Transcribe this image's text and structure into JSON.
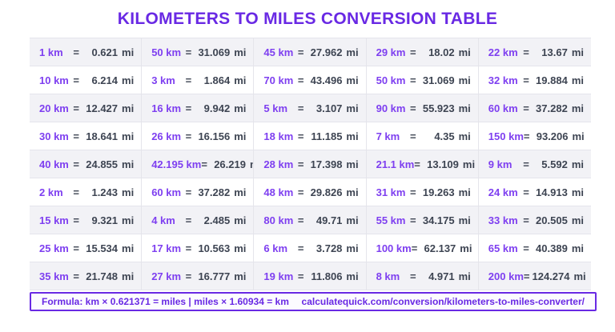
{
  "title": "KILOMETERS TO MILES CONVERSION TABLE",
  "colors": {
    "accent_purple": "#6929e4",
    "km_purple": "#7e3ff0",
    "mi_dark": "#3d4452",
    "row_alt_bg": "#f2f2f6",
    "grid_line": "#e5e5eb"
  },
  "table": {
    "km_unit": "km",
    "mi_unit": "mi",
    "equals": "=",
    "rows": [
      [
        {
          "km": "1",
          "mi": "0.621"
        },
        {
          "km": "50",
          "mi": "31.069"
        },
        {
          "km": "45",
          "mi": "27.962"
        },
        {
          "km": "29",
          "mi": "18.02"
        },
        {
          "km": "22",
          "mi": "13.67"
        }
      ],
      [
        {
          "km": "10",
          "mi": "6.214"
        },
        {
          "km": "3",
          "mi": "1.864"
        },
        {
          "km": "70",
          "mi": "43.496"
        },
        {
          "km": "50",
          "mi": "31.069"
        },
        {
          "km": "32",
          "mi": "19.884"
        }
      ],
      [
        {
          "km": "20",
          "mi": "12.427"
        },
        {
          "km": "16",
          "mi": "9.942"
        },
        {
          "km": "5",
          "mi": "3.107"
        },
        {
          "km": "90",
          "mi": "55.923"
        },
        {
          "km": "60",
          "mi": "37.282"
        }
      ],
      [
        {
          "km": "30",
          "mi": "18.641"
        },
        {
          "km": "26",
          "mi": "16.156"
        },
        {
          "km": "18",
          "mi": "11.185"
        },
        {
          "km": "7",
          "mi": "4.35"
        },
        {
          "km": "150",
          "mi": "93.206"
        }
      ],
      [
        {
          "km": "40",
          "mi": "24.855"
        },
        {
          "km": "42.195",
          "mi": "26.219"
        },
        {
          "km": "28",
          "mi": "17.398"
        },
        {
          "km": "21.1",
          "mi": "13.109"
        },
        {
          "km": "9",
          "mi": "5.592"
        }
      ],
      [
        {
          "km": "2",
          "mi": "1.243"
        },
        {
          "km": "60",
          "mi": "37.282"
        },
        {
          "km": "48",
          "mi": "29.826"
        },
        {
          "km": "31",
          "mi": "19.263"
        },
        {
          "km": "24",
          "mi": "14.913"
        }
      ],
      [
        {
          "km": "15",
          "mi": "9.321"
        },
        {
          "km": "4",
          "mi": "2.485"
        },
        {
          "km": "80",
          "mi": "49.71"
        },
        {
          "km": "55",
          "mi": "34.175"
        },
        {
          "km": "33",
          "mi": "20.505"
        }
      ],
      [
        {
          "km": "25",
          "mi": "15.534"
        },
        {
          "km": "17",
          "mi": "10.563"
        },
        {
          "km": "6",
          "mi": "3.728"
        },
        {
          "km": "100",
          "mi": "62.137"
        },
        {
          "km": "65",
          "mi": "40.389"
        }
      ],
      [
        {
          "km": "35",
          "mi": "21.748"
        },
        {
          "km": "27",
          "mi": "16.777"
        },
        {
          "km": "19",
          "mi": "11.806"
        },
        {
          "km": "8",
          "mi": "4.971"
        },
        {
          "km": "200",
          "mi": "124.274"
        }
      ]
    ]
  },
  "footer": {
    "formula": "Formula: km × 0.621371 = miles  |  miles × 1.60934 = km",
    "url": "calculatequick.com/conversion/kilometers-to-miles-converter/"
  }
}
